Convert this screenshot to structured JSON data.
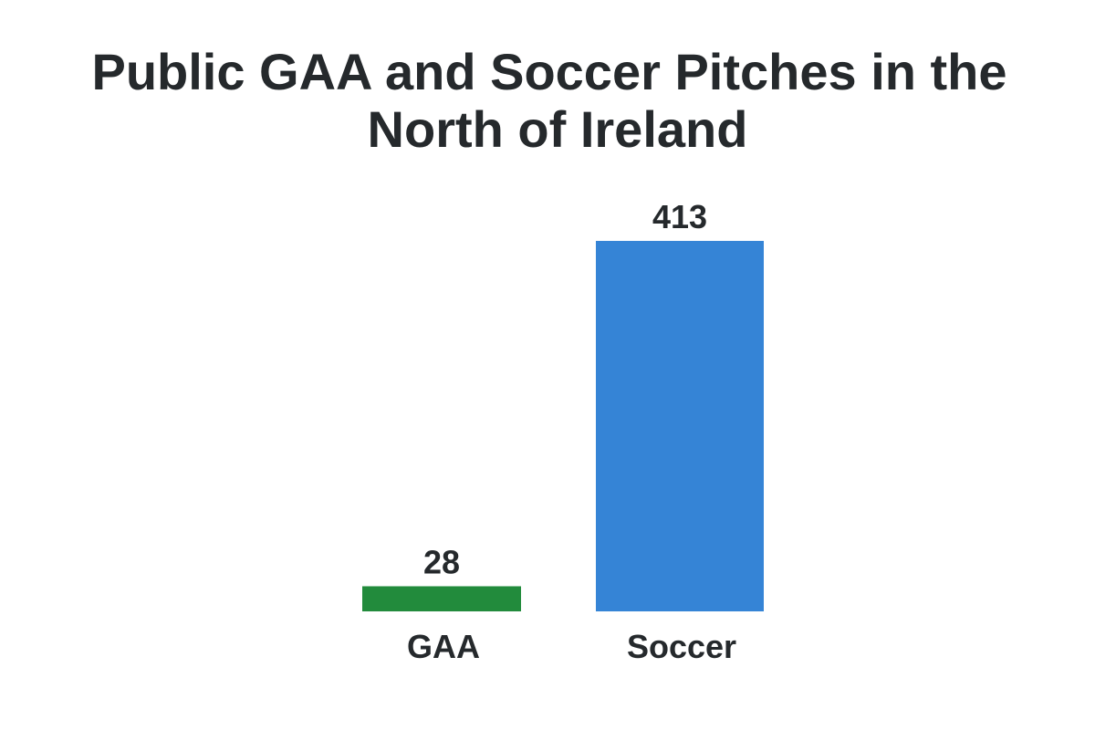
{
  "chart_data": {
    "type": "bar",
    "title": "Public GAA and Soccer Pitches in the North of Ireland",
    "title_lines": [
      "Public GAA and Soccer Pitches in the",
      "North of Ireland"
    ],
    "categories": [
      "GAA",
      "Soccer"
    ],
    "values": [
      28,
      413
    ],
    "colors": [
      "#228b3c",
      "#3584d6"
    ],
    "xlabel": "",
    "ylabel": "",
    "ylim": [
      0,
      413
    ],
    "grid": false,
    "legend": "none",
    "data_labels": true
  }
}
